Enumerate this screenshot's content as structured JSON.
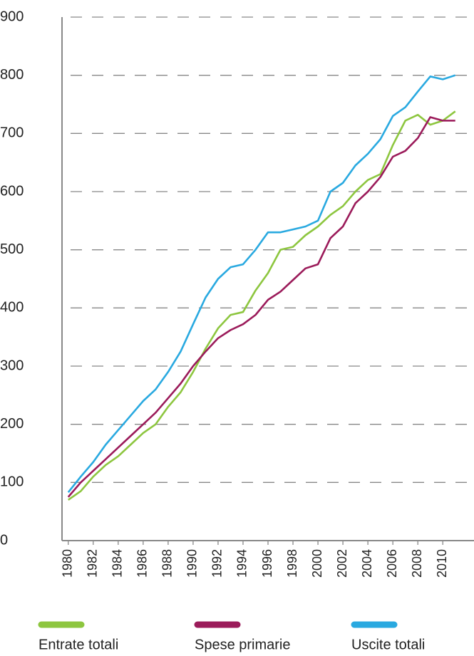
{
  "chart_data": {
    "type": "line",
    "x": [
      1980,
      1981,
      1982,
      1983,
      1984,
      1985,
      1986,
      1987,
      1988,
      1989,
      1990,
      1991,
      1992,
      1993,
      1994,
      1995,
      1996,
      1997,
      1998,
      1999,
      2000,
      2001,
      2002,
      2003,
      2004,
      2005,
      2006,
      2007,
      2008,
      2009,
      2010,
      2011
    ],
    "series": [
      {
        "name": "Entrate totali",
        "color": "#8dc63f",
        "values": [
          70,
          85,
          110,
          130,
          145,
          165,
          185,
          200,
          230,
          255,
          290,
          330,
          365,
          388,
          393,
          430,
          460,
          500,
          505,
          525,
          540,
          560,
          575,
          600,
          620,
          630,
          680,
          722,
          732,
          715,
          722,
          738
        ]
      },
      {
        "name": "Spese primarie",
        "color": "#9b1b5a",
        "values": [
          75,
          100,
          120,
          140,
          160,
          180,
          200,
          220,
          245,
          270,
          300,
          325,
          348,
          362,
          372,
          388,
          414,
          428,
          448,
          468,
          475,
          520,
          540,
          580,
          600,
          625,
          660,
          670,
          692,
          728,
          722,
          722
        ]
      },
      {
        "name": "Uscite totali",
        "color": "#29a9e0",
        "values": [
          83,
          110,
          135,
          165,
          190,
          215,
          240,
          260,
          290,
          325,
          372,
          418,
          450,
          470,
          475,
          500,
          530,
          530,
          535,
          540,
          550,
          600,
          615,
          645,
          665,
          690,
          730,
          745,
          772,
          798,
          793,
          800
        ]
      }
    ],
    "xlim": [
      1979.5,
      2012.5
    ],
    "xticks": [
      1980,
      1982,
      1984,
      1986,
      1988,
      1990,
      1992,
      1994,
      1996,
      1998,
      2000,
      2002,
      2004,
      2006,
      2008,
      2010
    ],
    "ylim": [
      0,
      900
    ],
    "yticks": [
      0,
      100,
      200,
      300,
      400,
      500,
      600,
      700,
      800,
      900
    ],
    "grid": true
  }
}
